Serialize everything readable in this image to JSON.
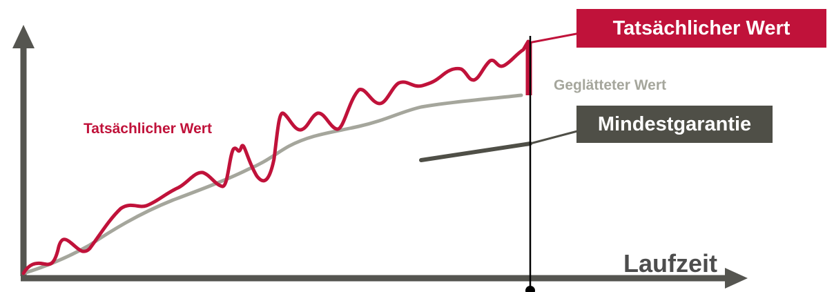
{
  "labels": {
    "actual_value_callout": "Tatsächlicher Wert",
    "actual_value_curve": "Tatsächlicher Wert",
    "smoothed_value": "Geglätteter Wert",
    "minimum_guarantee": "Mindestgarantie",
    "x_axis": "Laufzeit"
  },
  "colors": {
    "actual": "#c0123a",
    "smoothed": "#a5a69c",
    "guarantee": "#4f4f47",
    "axis": "#555550",
    "marker": "#000000",
    "x_axis_label": "#4d4d4d"
  },
  "series": [
    {
      "name": "Tatsächlicher Wert",
      "role": "actual"
    },
    {
      "name": "Geglätteter Wert",
      "role": "smoothed"
    },
    {
      "name": "Mindestgarantie",
      "role": "guarantee"
    }
  ]
}
